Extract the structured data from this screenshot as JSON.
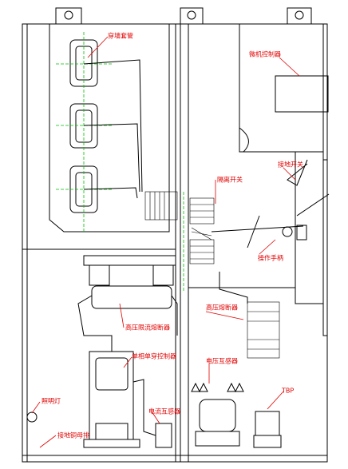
{
  "labels": [
    "穿墙套管",
    "微机控制器",
    "接地开关",
    "隔离开关",
    "操作手柄",
    "高压限流熔断器",
    "高压熔断器",
    "单相单穿控制器",
    "电压互感器",
    "照明灯",
    "电流互感器",
    "接地铜母排",
    "TBP"
  ]
}
